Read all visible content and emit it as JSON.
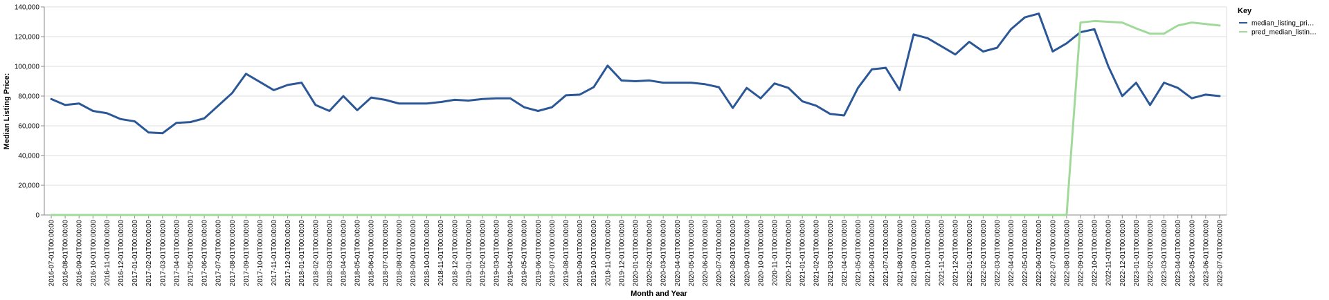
{
  "chart_data": {
    "type": "line",
    "xlabel": "Month and Year",
    "ylabel": "Median Listing Price:",
    "ylim": [
      0,
      140000
    ],
    "y_ticks": [
      0,
      20000,
      40000,
      60000,
      80000,
      100000,
      120000,
      140000
    ],
    "y_tick_labels": [
      "0",
      "20,000",
      "40,000",
      "60,000",
      "80,000",
      "100,000",
      "120,000",
      "140,000"
    ],
    "grid": true,
    "legend": {
      "title": "Key",
      "position": "top-right"
    },
    "x": [
      "2016-07-01T00:00:00",
      "2016-08-01T00:00:00",
      "2016-09-01T00:00:00",
      "2016-10-01T00:00:00",
      "2016-11-01T00:00:00",
      "2016-12-01T00:00:00",
      "2017-01-01T00:00:00",
      "2017-02-01T00:00:00",
      "2017-03-01T00:00:00",
      "2017-04-01T00:00:00",
      "2017-05-01T00:00:00",
      "2017-06-01T00:00:00",
      "2017-07-01T00:00:00",
      "2017-08-01T00:00:00",
      "2017-09-01T00:00:00",
      "2017-10-01T00:00:00",
      "2017-11-01T00:00:00",
      "2017-12-01T00:00:00",
      "2018-01-01T00:00:00",
      "2018-02-01T00:00:00",
      "2018-03-01T00:00:00",
      "2018-04-01T00:00:00",
      "2018-05-01T00:00:00",
      "2018-06-01T00:00:00",
      "2018-07-01T00:00:00",
      "2018-08-01T00:00:00",
      "2018-09-01T00:00:00",
      "2018-10-01T00:00:00",
      "2018-11-01T00:00:00",
      "2018-12-01T00:00:00",
      "2019-01-01T00:00:00",
      "2019-02-01T00:00:00",
      "2019-03-01T00:00:00",
      "2019-04-01T00:00:00",
      "2019-05-01T00:00:00",
      "2019-06-01T00:00:00",
      "2019-07-01T00:00:00",
      "2019-08-01T00:00:00",
      "2019-09-01T00:00:00",
      "2019-10-01T00:00:00",
      "2019-11-01T00:00:00",
      "2019-12-01T00:00:00",
      "2020-01-01T00:00:00",
      "2020-02-01T00:00:00",
      "2020-03-01T00:00:00",
      "2020-04-01T00:00:00",
      "2020-05-01T00:00:00",
      "2020-06-01T00:00:00",
      "2020-07-01T00:00:00",
      "2020-08-01T00:00:00",
      "2020-09-01T00:00:00",
      "2020-10-01T00:00:00",
      "2020-11-01T00:00:00",
      "2020-12-01T00:00:00",
      "2021-01-01T00:00:00",
      "2021-02-01T00:00:00",
      "2021-03-01T00:00:00",
      "2021-04-01T00:00:00",
      "2021-05-01T00:00:00",
      "2021-06-01T00:00:00",
      "2021-07-01T00:00:00",
      "2021-08-01T00:00:00",
      "2021-09-01T00:00:00",
      "2021-10-01T00:00:00",
      "2021-11-01T00:00:00",
      "2021-12-01T00:00:00",
      "2022-01-01T00:00:00",
      "2022-02-01T00:00:00",
      "2022-03-01T00:00:00",
      "2022-04-01T00:00:00",
      "2022-05-01T00:00:00",
      "2022-06-01T00:00:00",
      "2022-07-01T00:00:00",
      "2022-08-01T00:00:00",
      "2022-09-01T00:00:00",
      "2022-10-01T00:00:00",
      "2022-11-01T00:00:00",
      "2022-12-01T00:00:00",
      "2023-01-01T00:00:00",
      "2023-02-01T00:00:00",
      "2023-03-01T00:00:00",
      "2023-04-01T00:00:00",
      "2023-05-01T00:00:00",
      "2023-06-01T00:00:00",
      "2023-07-01T00:00:00"
    ],
    "series": [
      {
        "name": "median_listing_pri…",
        "color": "#2b5797",
        "values": [
          78000,
          74000,
          75000,
          70000,
          68500,
          64500,
          63000,
          55500,
          55000,
          62000,
          62500,
          65000,
          73500,
          82000,
          95000,
          89500,
          84000,
          87500,
          89000,
          74000,
          70000,
          80000,
          70500,
          79000,
          77500,
          75000,
          75000,
          75000,
          76000,
          77500,
          77000,
          78000,
          78500,
          78500,
          72500,
          70000,
          72500,
          80500,
          81000,
          86000,
          100500,
          90500,
          90000,
          90500,
          89000,
          89000,
          89000,
          88000,
          86000,
          72000,
          85500,
          78500,
          88500,
          85500,
          76500,
          73500,
          68000,
          67000,
          85500,
          98000,
          99000,
          84000,
          121500,
          119000,
          113500,
          108000,
          116500,
          110000,
          112500,
          125000,
          133000,
          135500,
          110000,
          115500,
          123000,
          125000,
          100000,
          80000,
          89000,
          74000,
          89000,
          85500,
          78500,
          81000,
          80000
        ]
      },
      {
        "name": "pred_median_listin…",
        "color": "#a1d99b",
        "values": [
          0,
          0,
          0,
          0,
          0,
          0,
          0,
          0,
          0,
          0,
          0,
          0,
          0,
          0,
          0,
          0,
          0,
          0,
          0,
          0,
          0,
          0,
          0,
          0,
          0,
          0,
          0,
          0,
          0,
          0,
          0,
          0,
          0,
          0,
          0,
          0,
          0,
          0,
          0,
          0,
          0,
          0,
          0,
          0,
          0,
          0,
          0,
          0,
          0,
          0,
          0,
          0,
          0,
          0,
          0,
          0,
          0,
          0,
          0,
          0,
          0,
          0,
          0,
          0,
          0,
          0,
          0,
          0,
          0,
          0,
          0,
          0,
          0,
          0,
          129500,
          130500,
          130000,
          129500,
          125500,
          122000,
          122000,
          127500,
          129500,
          128500,
          127500
        ]
      }
    ]
  }
}
